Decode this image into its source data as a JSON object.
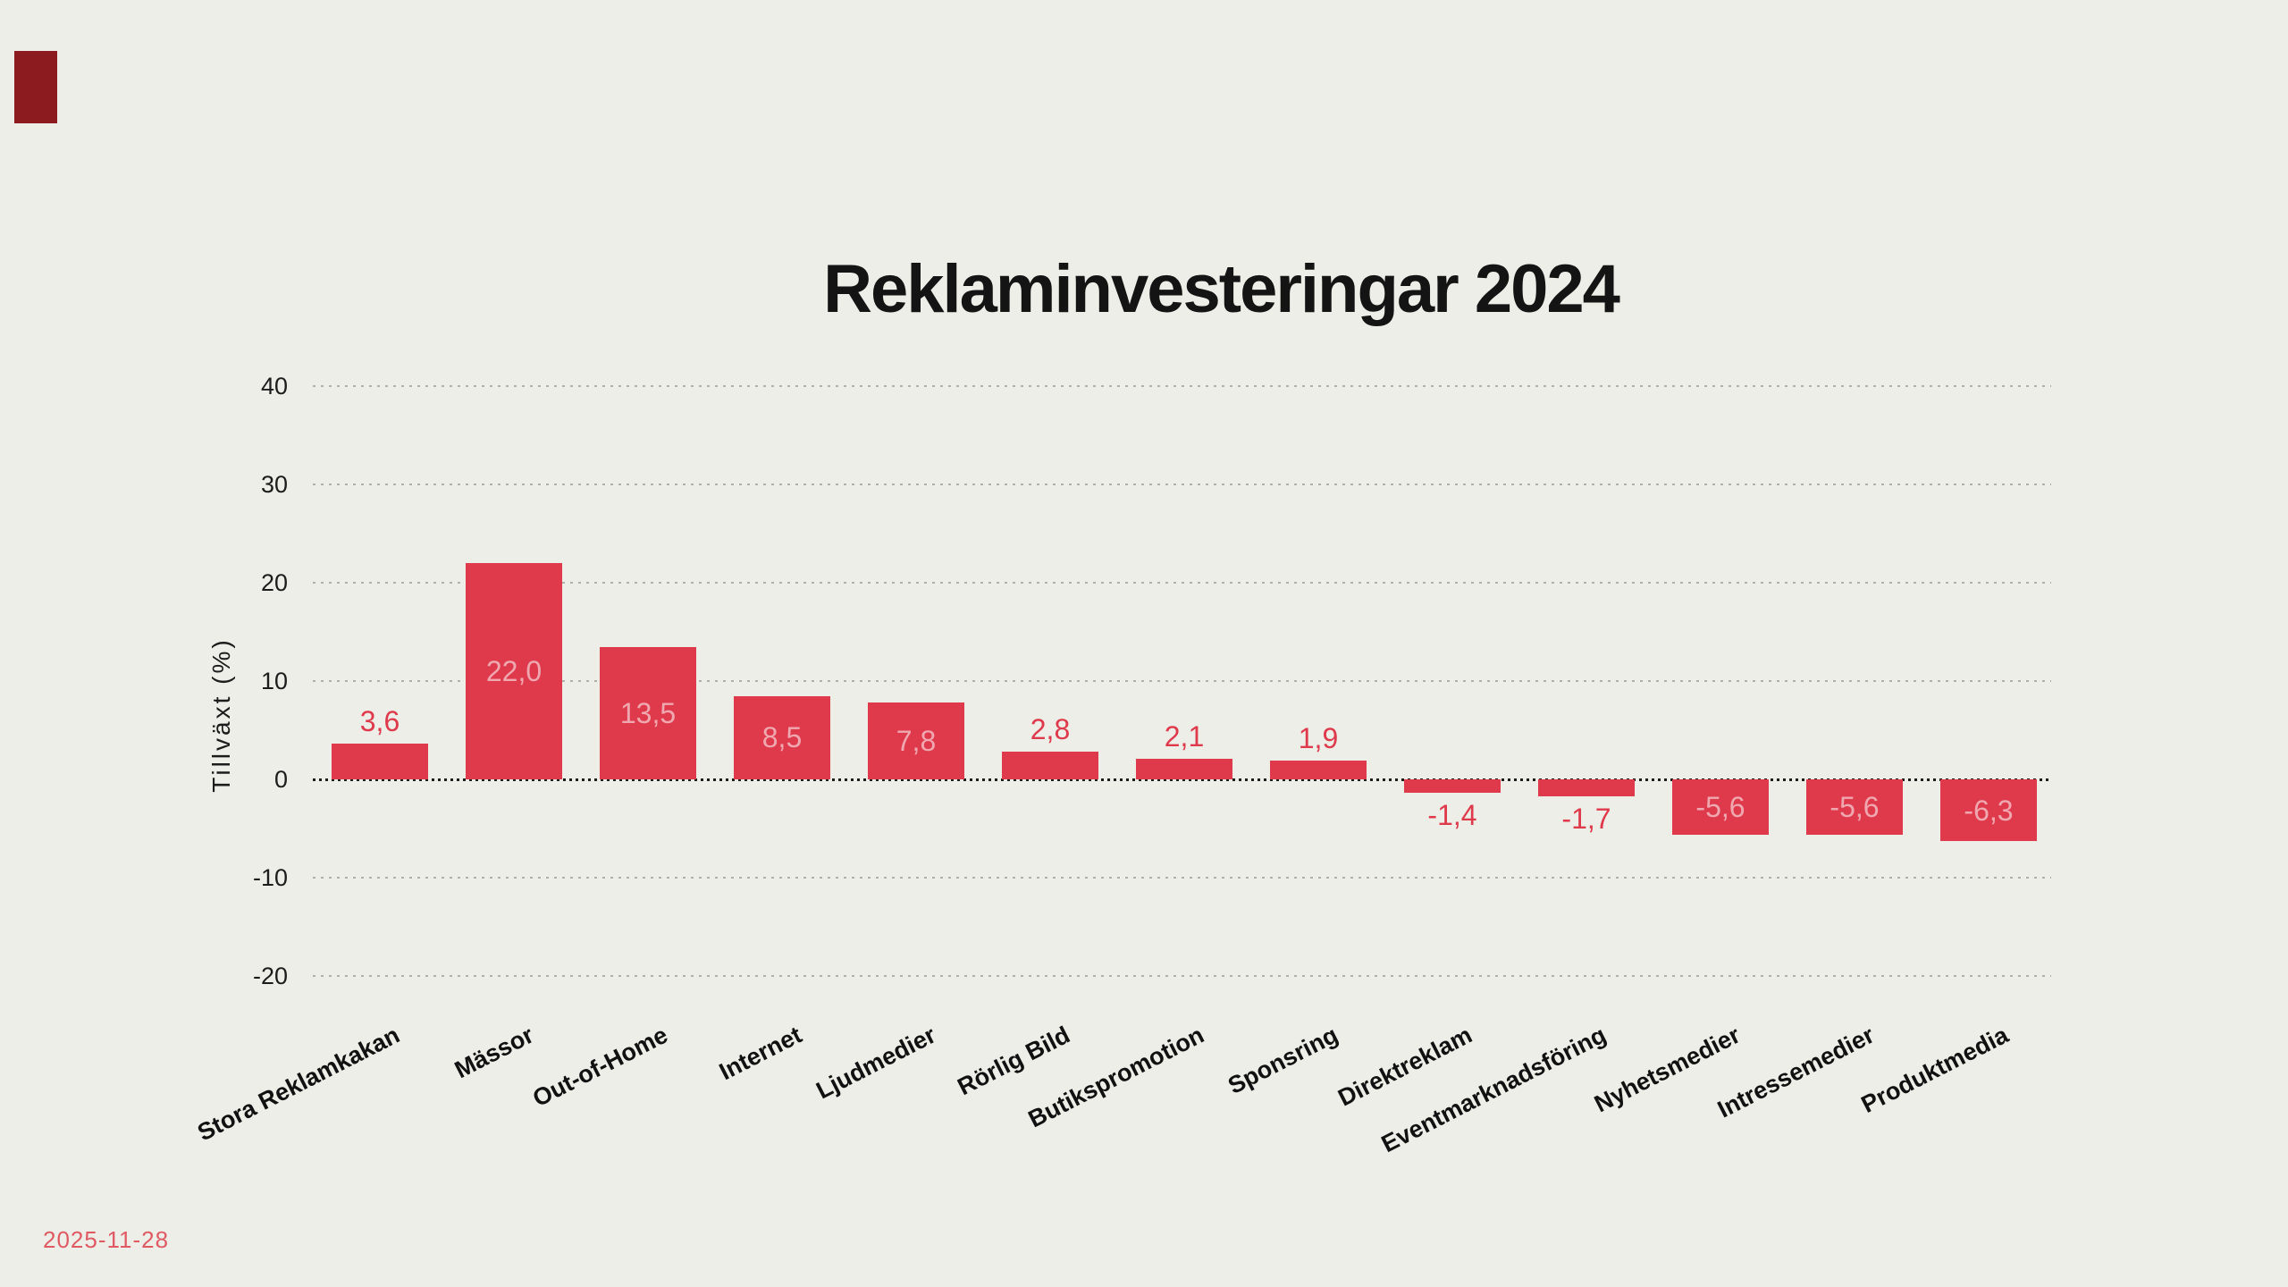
{
  "meta": {
    "date_stamp": "2025-11-28",
    "background_color": "#EDEEE7",
    "bar_color": "#DF3A4C",
    "inside_label_color": "#F0A8B0",
    "outside_label_color": "#DF3A4C",
    "brand_mark_color": "#8C1B1F",
    "text_color": "#141414",
    "grid_color": "#B0B0A9",
    "zero_line_color": "#1c1c1c",
    "date_color": "#E05A64"
  },
  "title": "Reklaminvesteringar 2024",
  "chart_data": {
    "type": "bar",
    "title": "Reklaminvesteringar 2024",
    "xlabel": "",
    "ylabel": "Tillväxt (%)",
    "ylim": [
      -20,
      40
    ],
    "yticks": [
      40,
      30,
      20,
      10,
      0,
      -10,
      -20
    ],
    "ytick_labels": [
      "40",
      "30",
      "20",
      "10",
      "0",
      "-10",
      "-20"
    ],
    "grid": "horizontal dashed, dotted black zero line",
    "legend": "none",
    "categories": [
      "Stora Reklamkakan",
      "Mässor",
      "Out-of-Home",
      "Internet",
      "Ljudmedier",
      "Rörlig Bild",
      "Butikspromotion",
      "Sponsring",
      "Direktreklam",
      "Eventmarknadsföring",
      "Nyhetsmedier",
      "Intressemedier",
      "Produktmedia"
    ],
    "values": [
      3.6,
      22.0,
      13.5,
      8.5,
      7.8,
      2.8,
      2.1,
      1.9,
      -1.4,
      -1.7,
      -5.6,
      -5.6,
      -6.3
    ],
    "value_labels": [
      "3,6",
      "22,0",
      "13,5",
      "8,5",
      "7,8",
      "2,8",
      "2,1",
      "1,9",
      "-1,4",
      "-1,7",
      "-5,6",
      "-5,6",
      "-6,3"
    ],
    "value_label_placement": [
      "above",
      "inside",
      "inside",
      "inside",
      "inside",
      "above",
      "above",
      "above",
      "below",
      "below",
      "inside",
      "inside",
      "inside"
    ]
  }
}
